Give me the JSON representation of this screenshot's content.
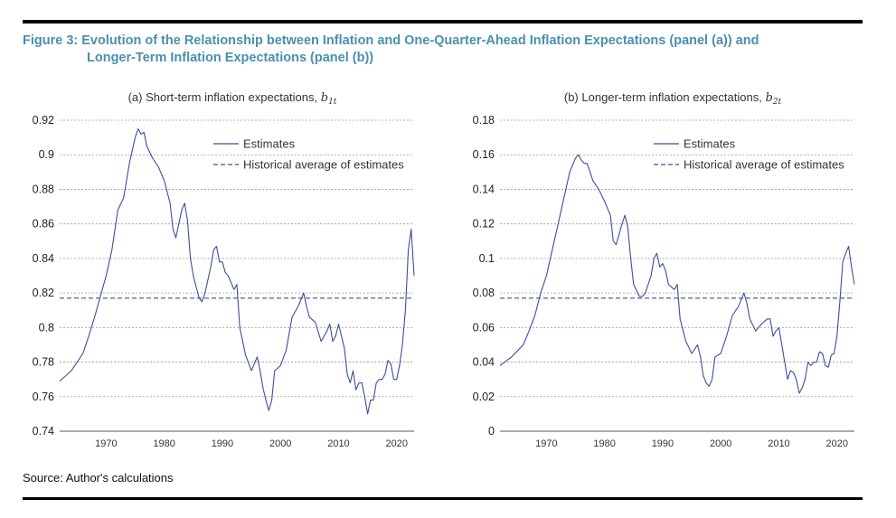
{
  "figure": {
    "title_line1": "Figure 3: Evolution of the Relationship between Inflation and One-Quarter-Ahead Inflation Expectations (panel (a)) and",
    "title_line2": "Longer-Term Inflation Expectations (panel (b))",
    "source": "Source: Author's calculations"
  },
  "colors": {
    "series": "#3b4f9a",
    "grid": "#9a9a9a",
    "title": "#4a8fb1"
  },
  "chart_data": [
    {
      "type": "line",
      "title": "(a) Short-term inflation expectations, ",
      "title_math": "b",
      "title_sub": "1t",
      "xlim": [
        1962,
        2023
      ],
      "xticks": [
        1970,
        1980,
        1990,
        2000,
        2010,
        2020
      ],
      "ylim": [
        0.74,
        0.92
      ],
      "yticks": [
        0.74,
        0.76,
        0.78,
        0.8,
        0.82,
        0.84,
        0.86,
        0.88,
        0.9,
        0.92
      ],
      "ytick_labels": [
        "0.74",
        "0.76",
        "0.78",
        "0.8",
        "0.82",
        "0.84",
        "0.86",
        "0.88",
        "0.9",
        "0.92"
      ],
      "grid": true,
      "legend_position": "top-right",
      "series": [
        {
          "name": "Estimates",
          "style": "solid",
          "x": [
            1962,
            1964,
            1966,
            1967,
            1968,
            1969,
            1970,
            1971,
            1972,
            1973,
            1974,
            1975,
            1975.5,
            1976,
            1976.5,
            1977,
            1978,
            1979,
            1980,
            1981,
            1981.5,
            1982,
            1983,
            1983.5,
            1984,
            1984.5,
            1985,
            1986,
            1986.5,
            1987,
            1988,
            1988.5,
            1989,
            1989.5,
            1990,
            1990.5,
            1991,
            1992,
            1992.5,
            1993,
            1994,
            1995,
            1996,
            1996.5,
            1997,
            1997.5,
            1998,
            1998.5,
            1999,
            2000,
            2001,
            2002,
            2003,
            2004,
            2004.5,
            2005,
            2006,
            2007,
            2008,
            2008.5,
            2009,
            2009.5,
            2010,
            2011,
            2011.5,
            2012,
            2012.5,
            2013,
            2013.5,
            2014,
            2014.5,
            2015,
            2015.5,
            2016,
            2016.5,
            2017,
            2017.5,
            2018,
            2018.5,
            2019,
            2019.5,
            2020,
            2020.5,
            2021,
            2021.5,
            2022,
            2022.5,
            2023
          ],
          "values": [
            0.769,
            0.775,
            0.785,
            0.795,
            0.806,
            0.818,
            0.83,
            0.845,
            0.868,
            0.875,
            0.895,
            0.91,
            0.915,
            0.912,
            0.913,
            0.905,
            0.898,
            0.893,
            0.885,
            0.872,
            0.857,
            0.852,
            0.868,
            0.872,
            0.862,
            0.84,
            0.83,
            0.817,
            0.815,
            0.82,
            0.835,
            0.845,
            0.847,
            0.838,
            0.838,
            0.832,
            0.83,
            0.822,
            0.825,
            0.8,
            0.784,
            0.775,
            0.783,
            0.775,
            0.765,
            0.758,
            0.752,
            0.758,
            0.775,
            0.778,
            0.787,
            0.806,
            0.812,
            0.82,
            0.812,
            0.806,
            0.803,
            0.792,
            0.798,
            0.802,
            0.792,
            0.795,
            0.802,
            0.788,
            0.773,
            0.768,
            0.775,
            0.764,
            0.768,
            0.768,
            0.76,
            0.75,
            0.758,
            0.758,
            0.768,
            0.77,
            0.77,
            0.773,
            0.781,
            0.779,
            0.77,
            0.77,
            0.778,
            0.79,
            0.81,
            0.845,
            0.857,
            0.83
          ]
        },
        {
          "name": "Historical average of estimates",
          "style": "dashed",
          "x": [
            1962,
            2023
          ],
          "values": [
            0.817,
            0.817
          ]
        }
      ]
    },
    {
      "type": "line",
      "title": "(b) Longer-term inflation expectations, ",
      "title_math": "b",
      "title_sub": "2t",
      "xlim": [
        1962,
        2023
      ],
      "xticks": [
        1970,
        1980,
        1990,
        2000,
        2010,
        2020
      ],
      "ylim": [
        0,
        0.18
      ],
      "yticks": [
        0,
        0.02,
        0.04,
        0.06,
        0.08,
        0.1,
        0.12,
        0.14,
        0.16,
        0.18
      ],
      "ytick_labels": [
        "0",
        "0.02",
        "0.04",
        "0.06",
        "0.08",
        "0.1",
        "0.12",
        "0.14",
        "0.16",
        "0.18"
      ],
      "grid": true,
      "legend_position": "top-right",
      "series": [
        {
          "name": "Estimates",
          "style": "solid",
          "x": [
            1962,
            1964,
            1966,
            1967,
            1968,
            1969,
            1970,
            1971,
            1972,
            1973,
            1974,
            1975,
            1975.5,
            1976,
            1976.5,
            1977,
            1978,
            1979,
            1980,
            1981,
            1981.5,
            1982,
            1983,
            1983.5,
            1984,
            1984.5,
            1985,
            1986,
            1986.5,
            1987,
            1988,
            1988.5,
            1989,
            1989.5,
            1990,
            1990.5,
            1991,
            1992,
            1992.5,
            1993,
            1994,
            1995,
            1996,
            1996.5,
            1997,
            1997.5,
            1998,
            1998.5,
            1999,
            2000,
            2001,
            2002,
            2003,
            2004,
            2004.5,
            2005,
            2006,
            2007,
            2008,
            2008.5,
            2009,
            2009.5,
            2010,
            2011,
            2011.5,
            2012,
            2012.5,
            2013,
            2013.5,
            2014,
            2014.5,
            2015,
            2015.5,
            2016,
            2016.5,
            2017,
            2017.5,
            2018,
            2018.5,
            2019,
            2019.5,
            2020,
            2020.5,
            2021,
            2021.5,
            2022,
            2022.5,
            2023
          ],
          "values": [
            0.038,
            0.043,
            0.05,
            0.058,
            0.067,
            0.08,
            0.09,
            0.105,
            0.12,
            0.135,
            0.15,
            0.158,
            0.16,
            0.157,
            0.155,
            0.155,
            0.145,
            0.14,
            0.133,
            0.125,
            0.11,
            0.108,
            0.12,
            0.125,
            0.118,
            0.1,
            0.085,
            0.078,
            0.078,
            0.08,
            0.09,
            0.1,
            0.103,
            0.095,
            0.097,
            0.093,
            0.085,
            0.082,
            0.085,
            0.065,
            0.052,
            0.045,
            0.05,
            0.043,
            0.032,
            0.028,
            0.026,
            0.03,
            0.043,
            0.045,
            0.055,
            0.067,
            0.072,
            0.08,
            0.074,
            0.065,
            0.058,
            0.062,
            0.065,
            0.065,
            0.055,
            0.058,
            0.06,
            0.04,
            0.03,
            0.035,
            0.034,
            0.03,
            0.022,
            0.025,
            0.03,
            0.04,
            0.038,
            0.04,
            0.04,
            0.046,
            0.045,
            0.038,
            0.037,
            0.044,
            0.045,
            0.055,
            0.075,
            0.098,
            0.103,
            0.107,
            0.095,
            0.085
          ]
        },
        {
          "name": "Historical average of estimates",
          "style": "dashed",
          "x": [
            1962,
            2023
          ],
          "values": [
            0.077,
            0.077
          ]
        }
      ]
    }
  ]
}
